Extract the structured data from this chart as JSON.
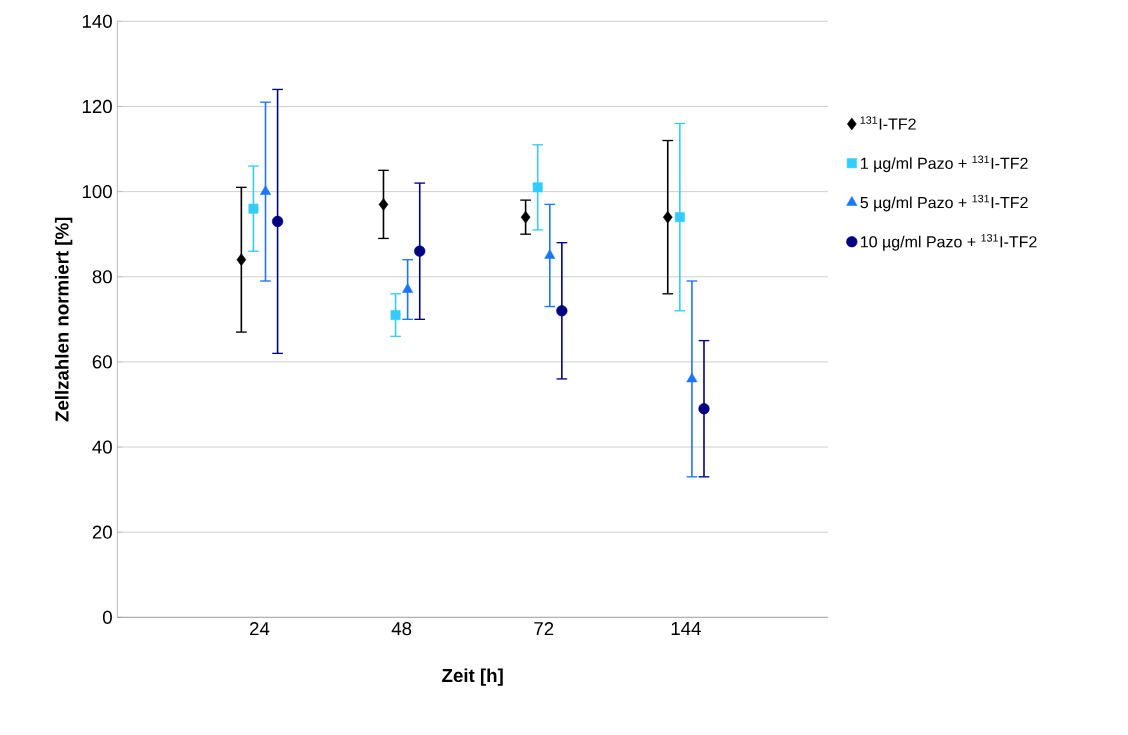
{
  "chart_data": {
    "type": "scatter",
    "xlabel": "Zeit [h]",
    "ylabel": "Zellzahlen normiert [%]",
    "categories": [
      "24",
      "48",
      "72",
      "144"
    ],
    "series": [
      {
        "name": "$^{131}$I-TF2",
        "color": "#000000",
        "marker": "diamond",
        "values": [
          84,
          97,
          94,
          94
        ],
        "errors": [
          17,
          8,
          4,
          18
        ]
      },
      {
        "name": "1 µg/ml Pazo + $^{131}$I-TF2",
        "color": "#33ccff",
        "marker": "square",
        "values": [
          96,
          71,
          101,
          94
        ],
        "errors": [
          10,
          5,
          10,
          22
        ]
      },
      {
        "name": "5 µg/ml Pazo + $^{131}$I-TF2",
        "color": "#1a75ff",
        "marker": "triangle",
        "values": [
          100,
          77,
          85,
          56
        ],
        "errors": [
          21,
          7,
          12,
          23
        ]
      },
      {
        "name": "10 µg/ml Pazo + $^{131}$I-TF2",
        "color": "#000080",
        "marker": "circle",
        "values": [
          93,
          86,
          72,
          49
        ],
        "errors": [
          31,
          16,
          16,
          16
        ]
      }
    ],
    "ylim": [
      0,
      140
    ],
    "yticks": [
      0,
      20,
      40,
      60,
      80,
      100,
      120,
      140
    ],
    "grid": "y",
    "legend": "right"
  }
}
